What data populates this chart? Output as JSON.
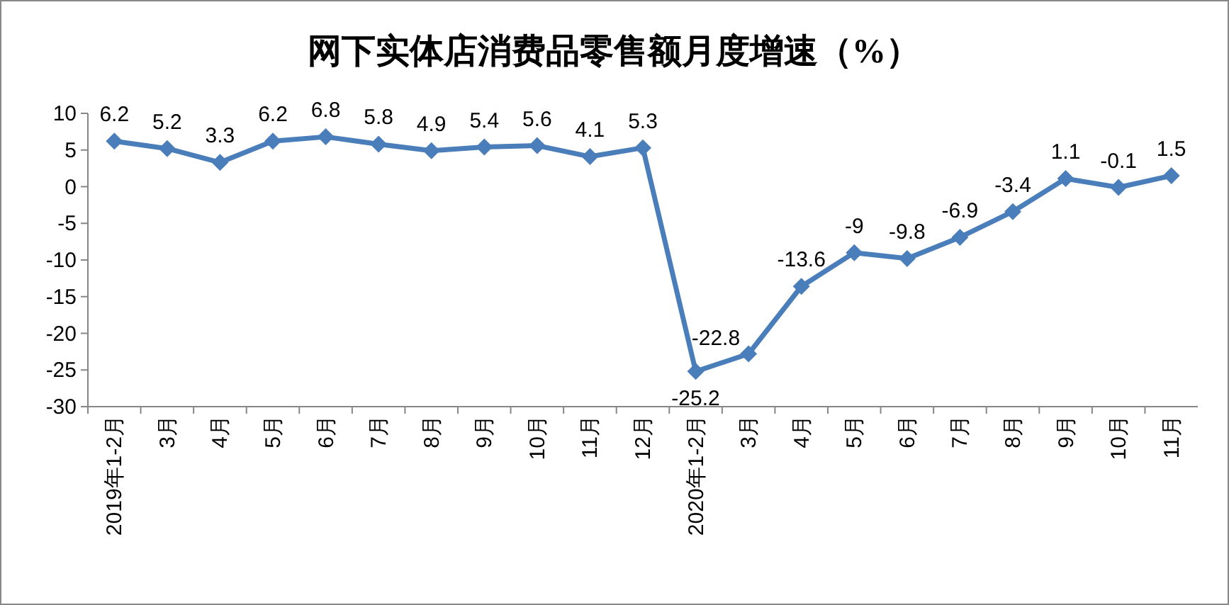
{
  "chart_data": {
    "type": "line",
    "title": "网下实体店消费品零售额月度增速（%）",
    "categories": [
      "2019年1-2月",
      "3月",
      "4月",
      "5月",
      "6月",
      "7月",
      "8月",
      "9月",
      "10月",
      "11月",
      "12月",
      "2020年1-2月",
      "3月",
      "4月",
      "5月",
      "6月",
      "7月",
      "8月",
      "9月",
      "10月",
      "11月"
    ],
    "values": [
      6.2,
      5.2,
      3.3,
      6.2,
      6.8,
      5.8,
      4.9,
      5.4,
      5.6,
      4.1,
      5.3,
      -25.2,
      -22.8,
      -13.6,
      -9,
      -9.8,
      -6.9,
      -3.4,
      1.1,
      -0.1,
      1.5
    ],
    "color": "#4a7ebb",
    "marker": "diamond",
    "line_style": "solid",
    "data_labels": true,
    "grid": false,
    "ylim": [
      -30,
      10
    ],
    "yticks": [
      -30,
      -25,
      -20,
      -15,
      -10,
      -5,
      0,
      5,
      10
    ]
  }
}
